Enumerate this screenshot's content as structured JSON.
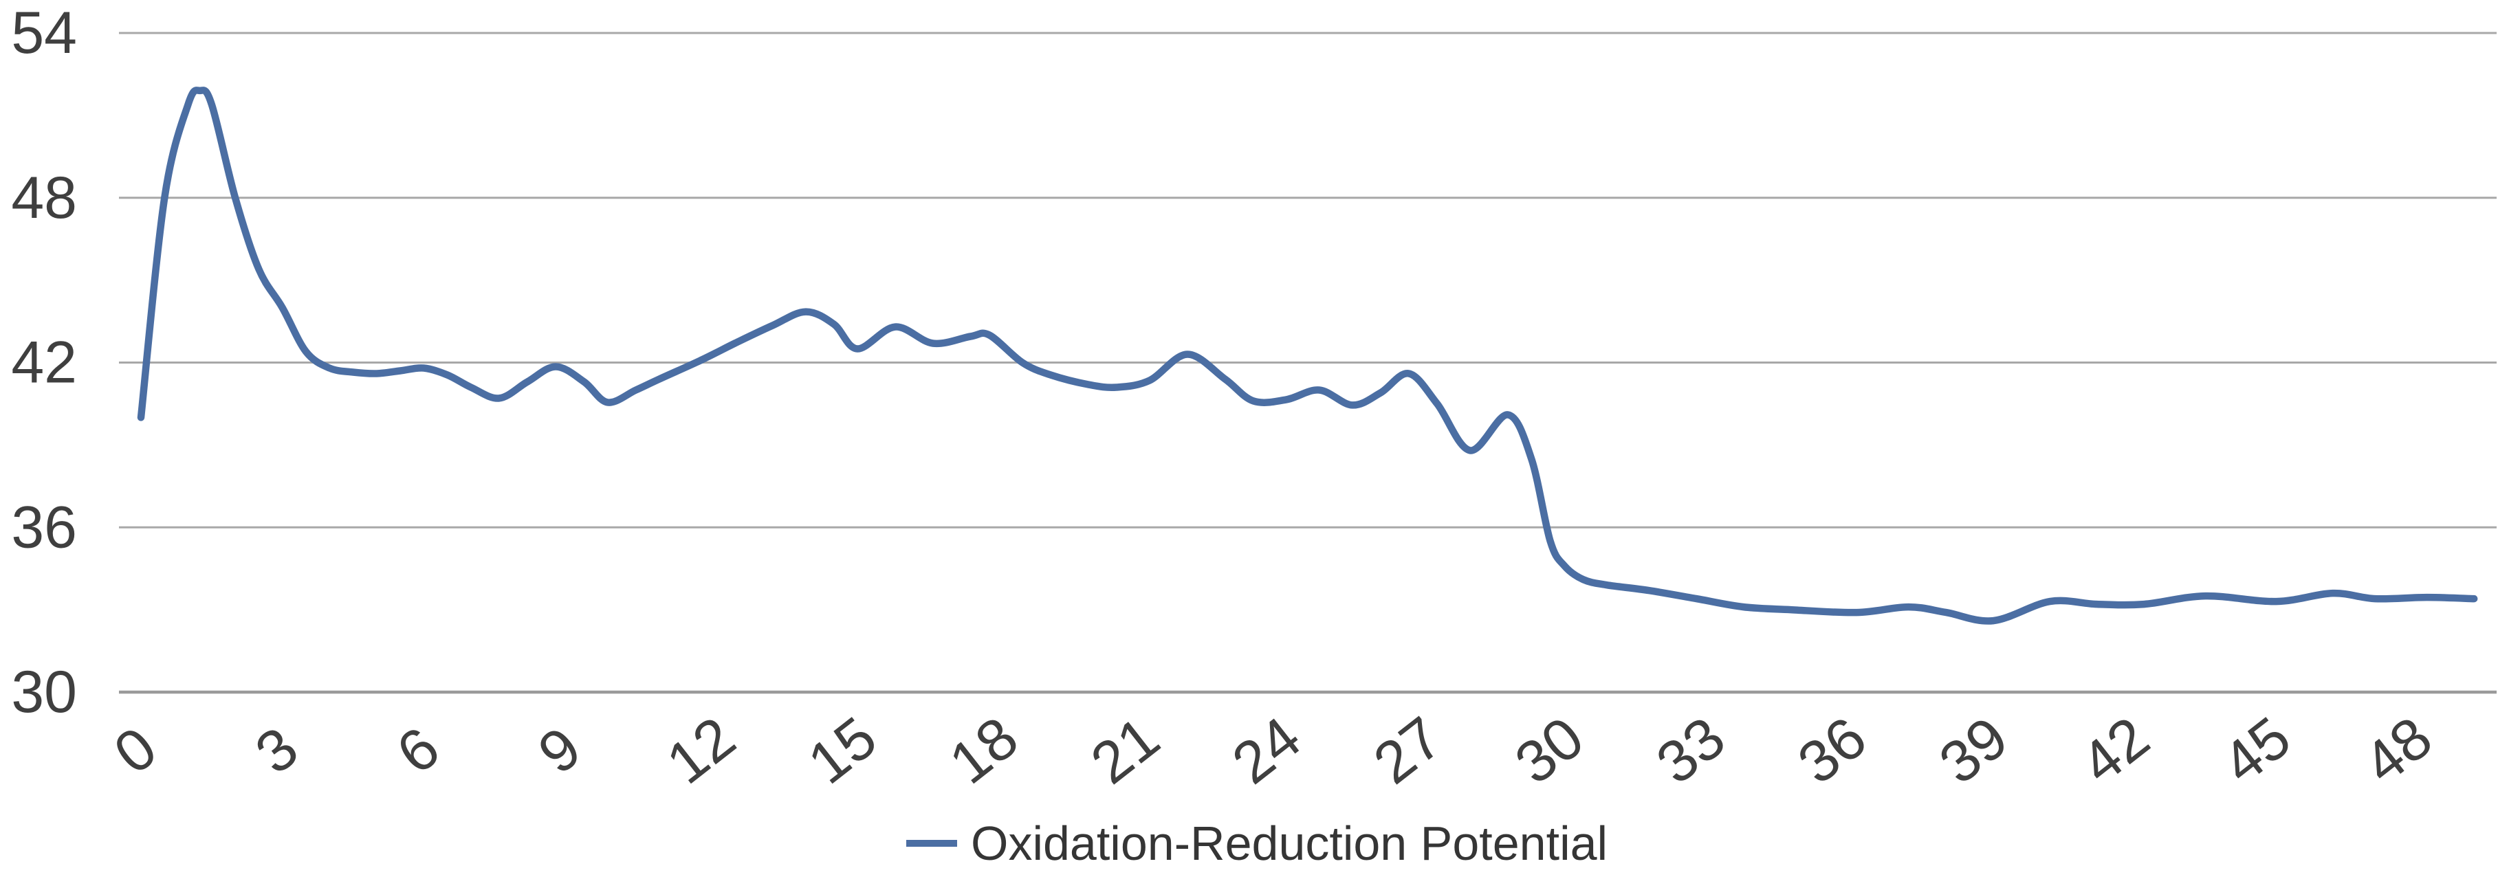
{
  "chart_data": {
    "type": "line",
    "title": "",
    "xlabel": "",
    "ylabel": "",
    "x_ticks": [
      0,
      3,
      6,
      9,
      12,
      15,
      18,
      21,
      24,
      27,
      30,
      33,
      36,
      39,
      42,
      45,
      48
    ],
    "y_ticks": [
      54,
      48,
      42,
      36,
      30
    ],
    "ylim": [
      30,
      54
    ],
    "xlim": [
      0,
      49.5
    ],
    "grid": "horizontal",
    "legend_position": "bottom-center",
    "series": [
      {
        "name": "Oxidation-Reduction Potential",
        "color": "#4B6EA3",
        "x": [
          0,
          0.5,
          1,
          1.25,
          1.5,
          2,
          2.5,
          3,
          3.5,
          4,
          4.5,
          5,
          5.5,
          6,
          6.5,
          7,
          7.6,
          8.2,
          8.8,
          9.4,
          9.9,
          10.5,
          11,
          11.9,
          12.6,
          13.4,
          14.1,
          14.7,
          15.2,
          16,
          16.8,
          17.6,
          18,
          18.7,
          19.3,
          20.1,
          20.7,
          21.4,
          22.2,
          23,
          23.6,
          24.3,
          25,
          25.7,
          26.3,
          26.9,
          27.5,
          28.2,
          29,
          29.5,
          29.9,
          30.2,
          30.6,
          31.1,
          32,
          33,
          34,
          35,
          36.4,
          37.5,
          38.3,
          39.3,
          40.5,
          41.5,
          42.5,
          43.8,
          45.3,
          46.5,
          47.4,
          48.5,
          49.5
        ],
        "y": [
          40.0,
          48.0,
          51.4,
          51.9,
          51.4,
          48.0,
          45.4,
          44.0,
          42.4,
          41.8,
          41.65,
          41.6,
          41.7,
          41.8,
          41.55,
          41.1,
          40.7,
          41.3,
          41.85,
          41.3,
          40.55,
          41.0,
          41.4,
          42.1,
          42.7,
          43.35,
          43.85,
          43.4,
          42.5,
          43.3,
          42.7,
          42.95,
          43.0,
          42.0,
          41.55,
          41.2,
          41.1,
          41.35,
          42.3,
          41.4,
          40.6,
          40.65,
          41.0,
          40.45,
          40.9,
          41.6,
          40.5,
          38.8,
          40.1,
          38.5,
          35.5,
          34.6,
          34.1,
          33.9,
          33.7,
          33.4,
          33.1,
          33.0,
          32.9,
          33.1,
          32.9,
          32.6,
          33.3,
          33.2,
          33.2,
          33.5,
          33.3,
          33.6,
          33.4,
          33.45,
          33.4
        ]
      }
    ],
    "legend_label": "Oxidation-Reduction Potential"
  },
  "colors": {
    "series_line": "#4B6EA3",
    "gridline": "#A8A8A8",
    "axis_line": "#9A9A9A",
    "tick_text": "#3F3F3F",
    "legend_text": "#353535",
    "background": "#FFFFFF"
  }
}
